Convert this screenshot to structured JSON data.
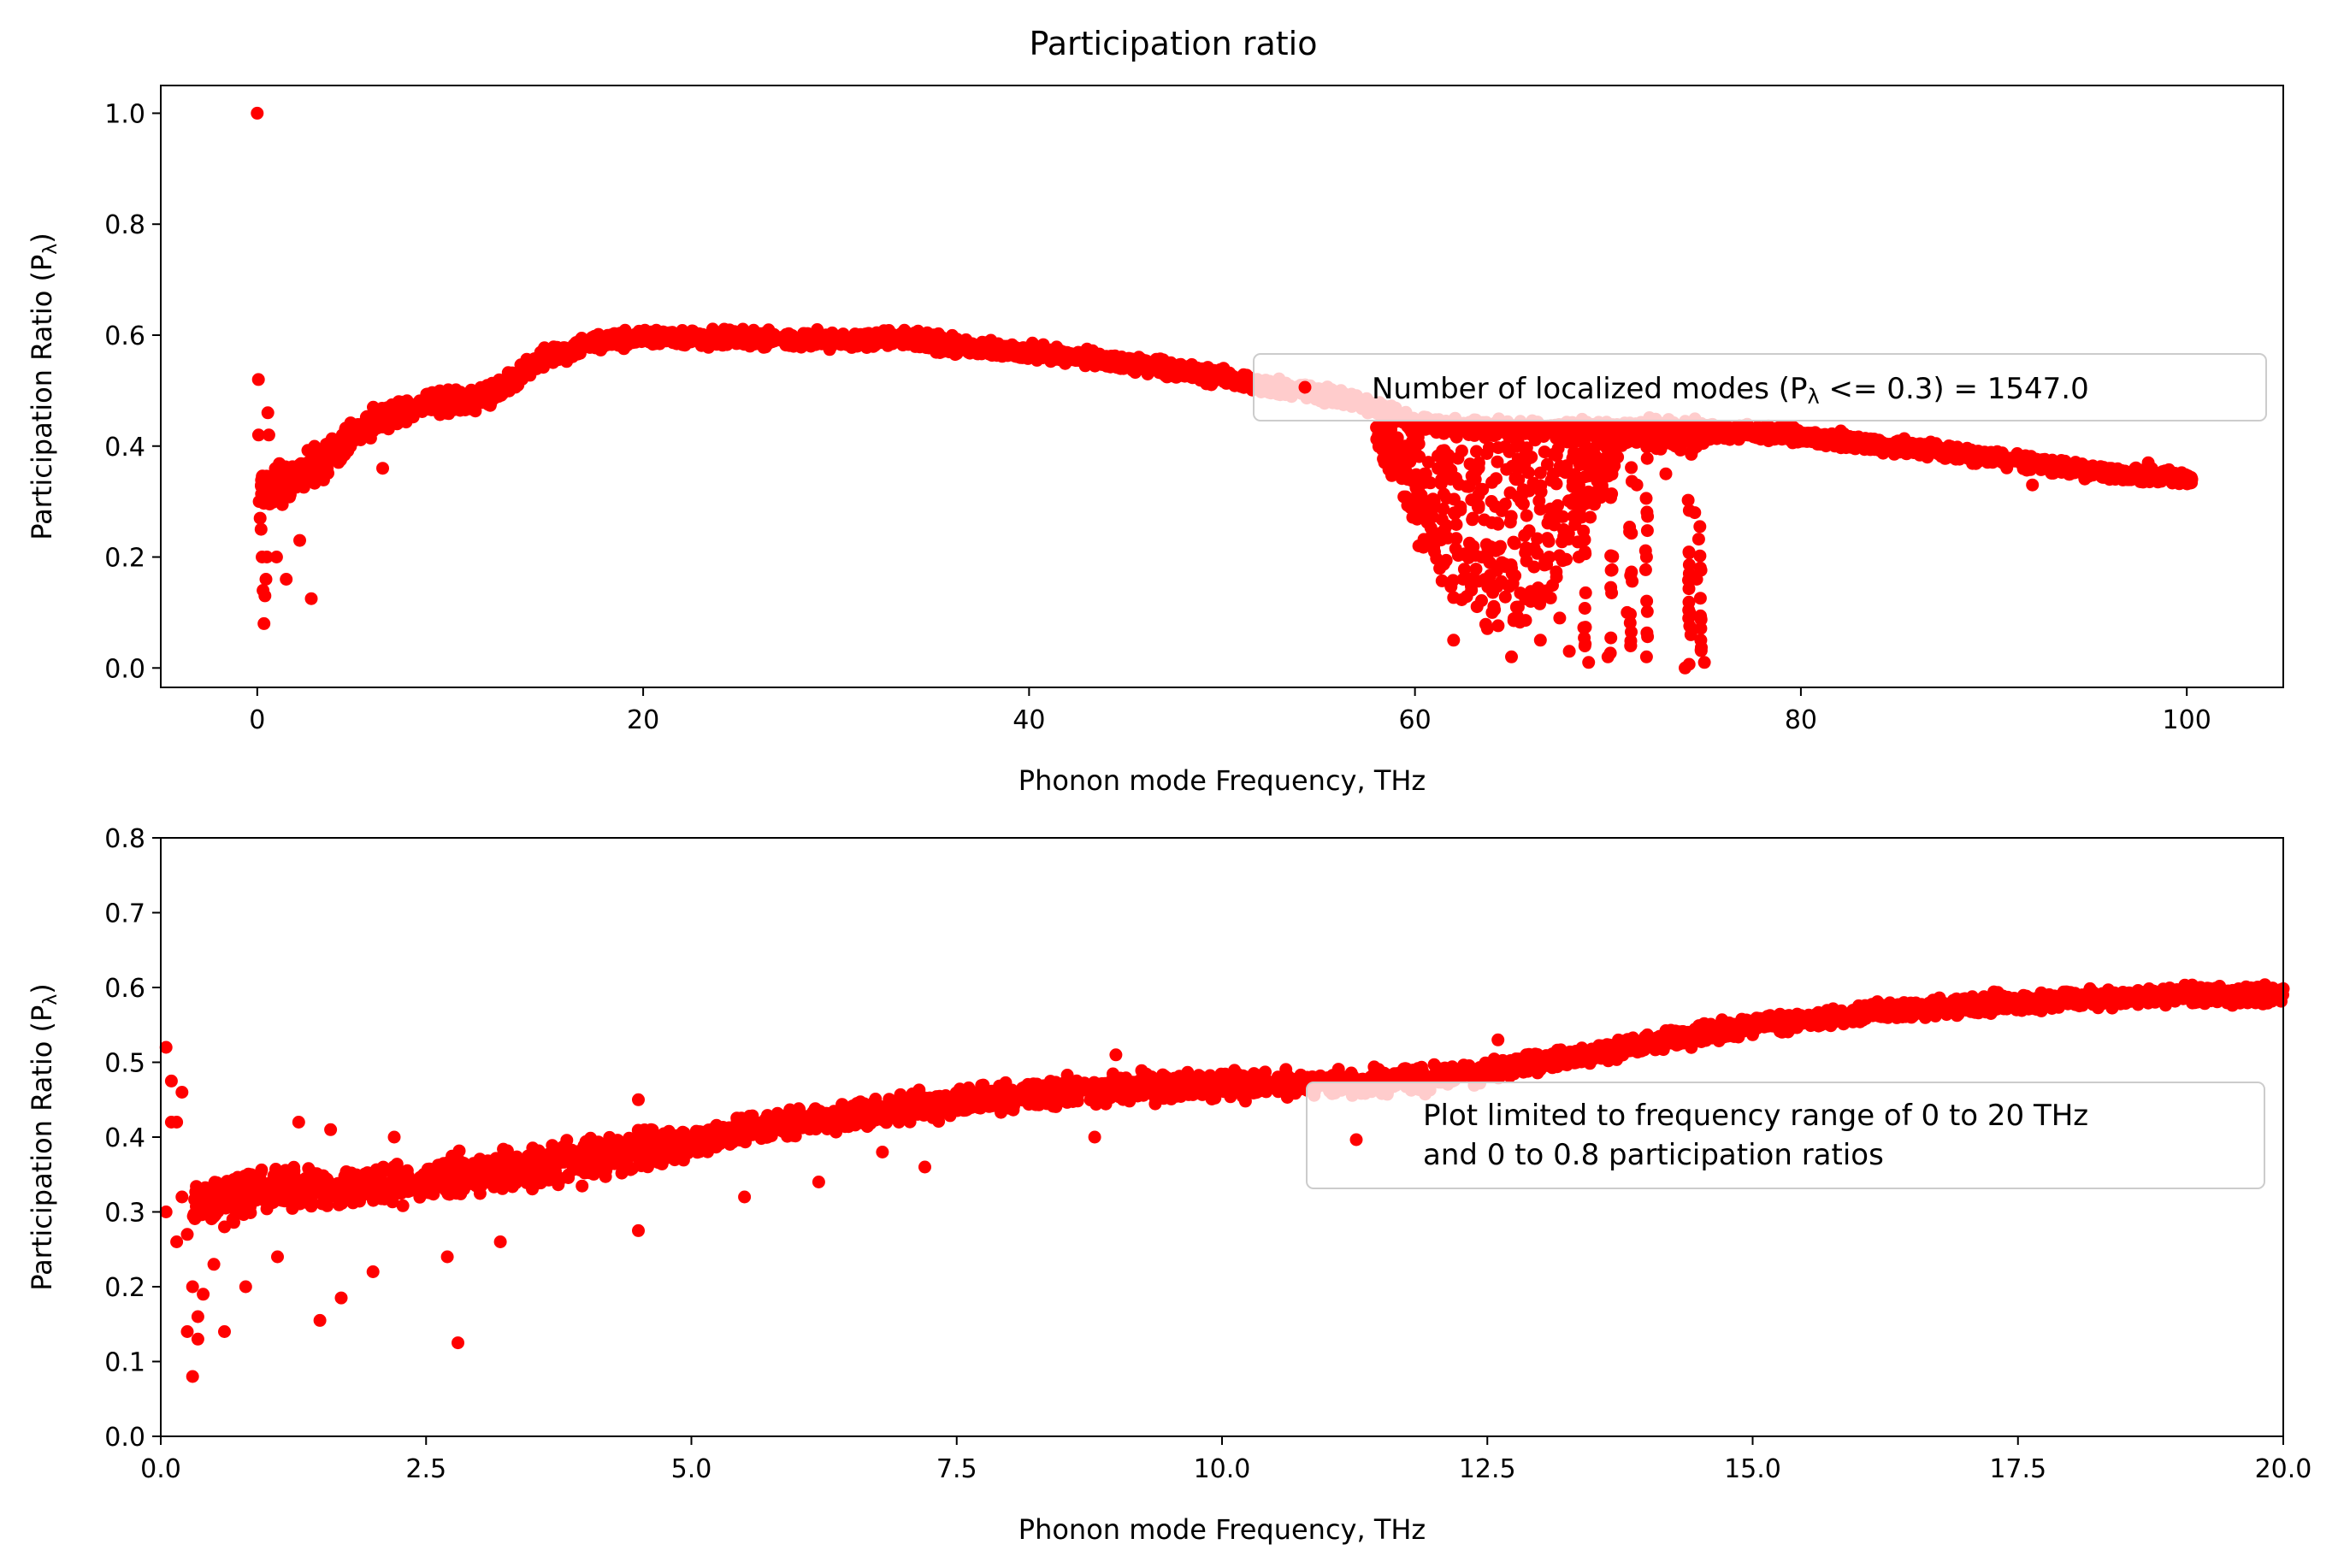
{
  "figure_title": "Participation ratio",
  "marker_color": "#ff0000",
  "chart_data": [
    {
      "type": "scatter",
      "xlabel": "Phonon mode Frequency, THz",
      "ylabel": "Participation Ratio (Pλ)",
      "ylabel_main": "Participation Ratio (P",
      "ylabel_sub": "λ",
      "ylabel_end": ")",
      "xlim": [
        -5,
        105
      ],
      "ylim": [
        -0.035,
        1.05
      ],
      "xticks": [
        0,
        20,
        40,
        60,
        80,
        100
      ],
      "xtick_labels": [
        "0",
        "20",
        "40",
        "60",
        "80",
        "100"
      ],
      "yticks": [
        0.0,
        0.2,
        0.4,
        0.6,
        0.8,
        1.0
      ],
      "ytick_labels": [
        "0.0",
        "0.2",
        "0.4",
        "0.6",
        "0.8",
        "1.0"
      ],
      "legend": "Number of localized modes (Pλ <= 0.3) = 1547.0",
      "legend_parts": [
        "Number of localized modes (P",
        "λ",
        " <= 0.3) = 1547.0"
      ],
      "legend_position": "center-right",
      "band": [
        [
          0.2,
          0.33
        ],
        [
          1,
          0.33
        ],
        [
          2,
          0.34
        ],
        [
          3,
          0.36
        ],
        [
          4,
          0.39
        ],
        [
          5,
          0.42
        ],
        [
          6,
          0.44
        ],
        [
          7,
          0.46
        ],
        [
          8,
          0.47
        ],
        [
          9,
          0.48
        ],
        [
          10,
          0.48
        ],
        [
          11,
          0.48
        ],
        [
          12,
          0.49
        ],
        [
          13,
          0.51
        ],
        [
          14,
          0.54
        ],
        [
          15,
          0.56
        ],
        [
          16,
          0.57
        ],
        [
          17,
          0.58
        ],
        [
          18,
          0.59
        ],
        [
          20,
          0.595
        ],
        [
          25,
          0.595
        ],
        [
          30,
          0.59
        ],
        [
          34,
          0.595
        ],
        [
          36,
          0.58
        ],
        [
          40,
          0.57
        ],
        [
          44,
          0.555
        ],
        [
          48,
          0.535
        ],
        [
          52,
          0.51
        ],
        [
          56,
          0.49
        ],
        [
          58,
          0.47
        ],
        [
          60,
          0.44
        ],
        [
          65,
          0.43
        ],
        [
          70,
          0.43
        ],
        [
          74,
          0.43
        ],
        [
          78,
          0.425
        ],
        [
          82,
          0.41
        ],
        [
          86,
          0.395
        ],
        [
          90,
          0.38
        ],
        [
          94,
          0.36
        ],
        [
          98,
          0.345
        ],
        [
          100.3,
          0.34
        ]
      ],
      "points": [
        [
          0,
          1.0
        ],
        [
          0.06,
          0.52
        ],
        [
          0.07,
          0.42
        ],
        [
          0.1,
          0.3
        ],
        [
          0.15,
          0.27
        ],
        [
          0.2,
          0.25
        ],
        [
          0.25,
          0.2
        ],
        [
          0.3,
          0.14
        ],
        [
          0.35,
          0.08
        ],
        [
          0.4,
          0.13
        ],
        [
          0.45,
          0.16
        ],
        [
          0.5,
          0.2
        ],
        [
          0.55,
          0.46
        ],
        [
          0.6,
          0.42
        ],
        [
          0.8,
          0.32
        ],
        [
          1.0,
          0.2
        ],
        [
          1.5,
          0.16
        ],
        [
          2.8,
          0.125
        ],
        [
          2.2,
          0.23
        ],
        [
          6.5,
          0.36
        ],
        [
          60.2,
          0.22
        ],
        [
          62.0,
          0.05
        ],
        [
          64.0,
          0.1
        ],
        [
          65.0,
          0.02
        ],
        [
          66.5,
          0.05
        ],
        [
          68.0,
          0.03
        ],
        [
          69.0,
          0.01
        ],
        [
          70.0,
          0.02
        ],
        [
          71.0,
          0.1
        ],
        [
          72.0,
          0.02
        ],
        [
          72.0,
          0.2
        ],
        [
          73.0,
          0.35
        ],
        [
          74.0,
          0.0
        ],
        [
          74.3,
          0.06
        ],
        [
          74.5,
          0.28
        ],
        [
          75.0,
          0.01
        ],
        [
          74.6,
          0.16
        ],
        [
          62.5,
          0.16
        ],
        [
          64.5,
          0.19
        ],
        [
          66.0,
          0.12
        ],
        [
          67.5,
          0.09
        ],
        [
          68.5,
          0.2
        ],
        [
          61.0,
          0.3
        ],
        [
          60.5,
          0.35
        ],
        [
          58.5,
          0.38
        ],
        [
          59.5,
          0.4
        ],
        [
          63.0,
          0.27
        ],
        [
          65.5,
          0.3
        ],
        [
          70.5,
          0.38
        ],
        [
          71.5,
          0.33
        ],
        [
          72.5,
          0.42
        ],
        [
          73.5,
          0.4
        ],
        [
          98.0,
          0.37
        ],
        [
          100.2,
          0.34
        ],
        [
          96.0,
          0.34
        ],
        [
          92.0,
          0.33
        ]
      ],
      "trough": [
        58,
        75
      ],
      "spike_columns": [
        [
          68.8,
          0.01,
          0.4
        ],
        [
          70.2,
          0.02,
          0.42
        ],
        [
          71.2,
          0.02,
          0.41
        ],
        [
          72.0,
          0.01,
          0.43
        ],
        [
          74.2,
          0.0,
          0.35
        ],
        [
          74.8,
          0.01,
          0.28
        ]
      ]
    },
    {
      "type": "scatter",
      "xlabel": "Phonon mode Frequency, THz",
      "ylabel": "Participation Ratio (Pλ)",
      "ylabel_main": "Participation Ratio (P",
      "ylabel_sub": "λ",
      "ylabel_end": ")",
      "xlim": [
        0,
        20
      ],
      "ylim": [
        0,
        0.8
      ],
      "xticks": [
        0,
        2.5,
        5,
        7.5,
        10,
        12.5,
        15,
        17.5,
        20
      ],
      "xtick_labels": [
        "0.0",
        "2.5",
        "5.0",
        "7.5",
        "10.0",
        "12.5",
        "15.0",
        "17.5",
        "20.0"
      ],
      "yticks": [
        0,
        0.1,
        0.2,
        0.3,
        0.4,
        0.5,
        0.6,
        0.7,
        0.8
      ],
      "ytick_labels": [
        "0.0",
        "0.1",
        "0.2",
        "0.3",
        "0.4",
        "0.5",
        "0.6",
        "0.7",
        "0.8"
      ],
      "legend": "Plot limited to frequency range of 0 to 20 THz and 0 to 0.8 participation ratios",
      "legend_lines": [
        "Plot limited to frequency range of 0 to 20 THz",
        "and 0 to 0.8 participation ratios"
      ],
      "legend_position": "center-right",
      "band": [
        [
          0.3,
          0.31
        ],
        [
          1,
          0.33
        ],
        [
          2,
          0.335
        ],
        [
          3,
          0.35
        ],
        [
          4,
          0.37
        ],
        [
          5,
          0.395
        ],
        [
          6,
          0.42
        ],
        [
          7,
          0.44
        ],
        [
          8,
          0.455
        ],
        [
          9,
          0.465
        ],
        [
          10,
          0.47
        ],
        [
          11,
          0.47
        ],
        [
          12,
          0.48
        ],
        [
          13,
          0.5
        ],
        [
          14,
          0.525
        ],
        [
          15,
          0.55
        ],
        [
          16,
          0.565
        ],
        [
          17,
          0.575
        ],
        [
          18,
          0.585
        ],
        [
          19,
          0.59
        ],
        [
          20,
          0.59
        ]
      ],
      "points": [
        [
          0.05,
          0.52
        ],
        [
          0.1,
          0.475
        ],
        [
          0.1,
          0.42
        ],
        [
          0.15,
          0.42
        ],
        [
          0.2,
          0.46
        ],
        [
          0.2,
          0.32
        ],
        [
          0.25,
          0.27
        ],
        [
          0.25,
          0.14
        ],
        [
          0.3,
          0.2
        ],
        [
          0.3,
          0.08
        ],
        [
          0.35,
          0.16
        ],
        [
          0.35,
          0.13
        ],
        [
          0.4,
          0.19
        ],
        [
          0.15,
          0.26
        ],
        [
          0.05,
          0.3
        ],
        [
          0.6,
          0.14
        ],
        [
          0.6,
          0.28
        ],
        [
          0.8,
          0.2
        ],
        [
          1.5,
          0.155
        ],
        [
          1.7,
          0.185
        ],
        [
          2.8,
          0.125
        ],
        [
          7.2,
          0.36
        ],
        [
          1.3,
          0.42
        ],
        [
          1.6,
          0.41
        ],
        [
          2.2,
          0.4
        ],
        [
          4.5,
          0.45
        ],
        [
          9.0,
          0.51
        ],
        [
          0.5,
          0.23
        ],
        [
          1.1,
          0.24
        ],
        [
          2.0,
          0.22
        ],
        [
          2.7,
          0.24
        ],
        [
          3.2,
          0.26
        ],
        [
          4.5,
          0.275
        ],
        [
          5.5,
          0.32
        ],
        [
          6.2,
          0.34
        ],
        [
          6.8,
          0.38
        ],
        [
          8.8,
          0.4
        ],
        [
          12.6,
          0.53
        ]
      ]
    }
  ]
}
